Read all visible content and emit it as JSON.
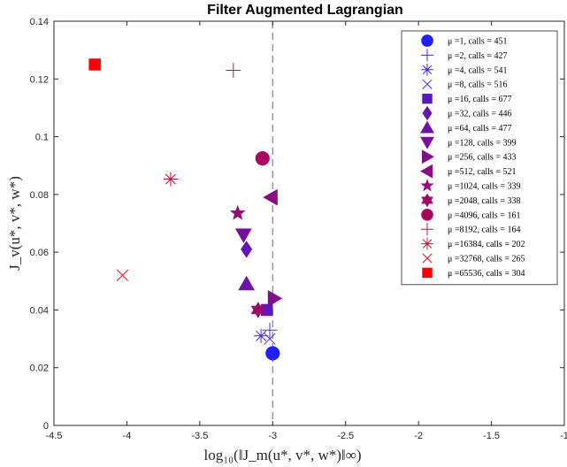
{
  "chart_data": {
    "type": "scatter",
    "title": "Filter Augmented Lagrangian",
    "xlabel": "log₁₀(‖J_m(u*, v*, w*)‖∞)",
    "ylabel": "J_v(u*, v*, w*)",
    "xlim": [
      -4.5,
      -1
    ],
    "ylim": [
      0,
      0.14
    ],
    "xticks": [
      "-4.5",
      "-4",
      "-3.5",
      "-3",
      "-2.5",
      "-2",
      "-1.5",
      "-1"
    ],
    "yticks": [
      "0",
      "0.02",
      "0.04",
      "0.06",
      "0.08",
      "0.1",
      "0.12",
      "0.14"
    ],
    "reference_line_x": -3,
    "grid": false,
    "legend_position": "top-right",
    "series": [
      {
        "name": "μ =1, calls = 451",
        "marker": "circle-filled",
        "color": "#1f1fff",
        "x": -3.0,
        "y": 0.025
      },
      {
        "name": "μ =2, calls = 427",
        "marker": "plus",
        "color": "#3a33e0",
        "x": -3.02,
        "y": 0.033
      },
      {
        "name": "μ =4, calls = 541",
        "marker": "asterisk",
        "color": "#3b2bd8",
        "x": -3.08,
        "y": 0.031
      },
      {
        "name": "μ =8, calls = 516",
        "marker": "x",
        "color": "#4b2ccc",
        "x": -3.02,
        "y": 0.03
      },
      {
        "name": "μ =16, calls = 677",
        "marker": "square-filled",
        "color": "#5a18c0",
        "x": -3.04,
        "y": 0.04
      },
      {
        "name": "μ =32, calls = 446",
        "marker": "diamond-filled",
        "color": "#6414b4",
        "x": -3.18,
        "y": 0.061
      },
      {
        "name": "μ =64, calls = 477",
        "marker": "triangle-up-filled",
        "color": "#6e12a8",
        "x": -3.18,
        "y": 0.049
      },
      {
        "name": "μ =128, calls = 399",
        "marker": "triangle-down-filled",
        "color": "#780f9c",
        "x": -3.2,
        "y": 0.066
      },
      {
        "name": "μ =256, calls = 433",
        "marker": "triangle-right-filled",
        "color": "#820d90",
        "x": -2.99,
        "y": 0.044
      },
      {
        "name": "μ =512, calls = 521",
        "marker": "triangle-left-filled",
        "color": "#8c0b84",
        "x": -3.01,
        "y": 0.079
      },
      {
        "name": "μ =1024, calls = 339",
        "marker": "star-filled",
        "color": "#960a78",
        "x": -3.24,
        "y": 0.0735
      },
      {
        "name": "μ =2048, calls = 338",
        "marker": "hexagram-filled",
        "color": "#a0086c",
        "x": -3.1,
        "y": 0.04
      },
      {
        "name": "μ =4096, calls = 161",
        "marker": "circle-filled",
        "color": "#aa0660",
        "x": -3.07,
        "y": 0.0925
      },
      {
        "name": "μ =8192, calls = 164",
        "marker": "plus",
        "color": "#c01448",
        "x": -3.27,
        "y": 0.123
      },
      {
        "name": "μ =16384, calls = 202",
        "marker": "asterisk",
        "color": "#c81030",
        "x": -3.7,
        "y": 0.0853
      },
      {
        "name": "μ =32768, calls = 265",
        "marker": "x",
        "color": "#d8141e",
        "x": -4.03,
        "y": 0.052
      },
      {
        "name": "μ =65536, calls = 304",
        "marker": "square-filled",
        "color": "#ff0000",
        "x": -4.22,
        "y": 0.125
      }
    ]
  }
}
